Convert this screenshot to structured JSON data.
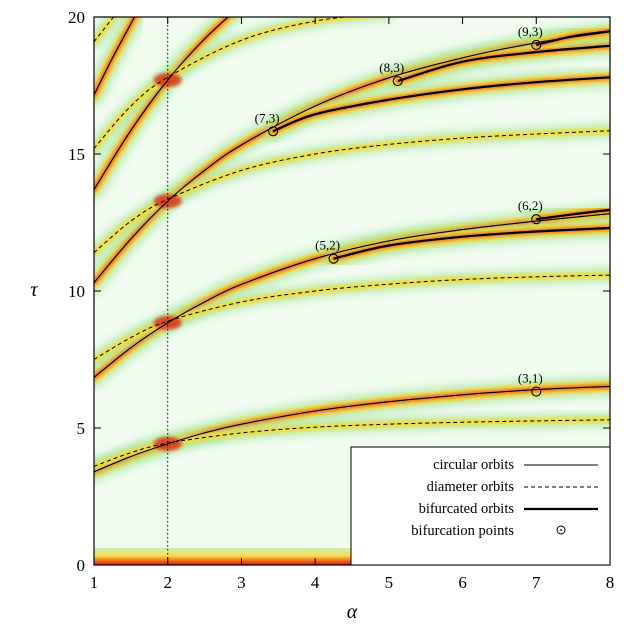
{
  "chart_data": {
    "type": "line",
    "title": "",
    "xlabel": "α",
    "ylabel": "τ",
    "xlim": [
      1,
      8
    ],
    "ylim": [
      0,
      20
    ],
    "xticks": [
      "1",
      "2",
      "3",
      "4",
      "5",
      "6",
      "7",
      "8"
    ],
    "yticks": [
      "0",
      "5",
      "10",
      "15",
      "20"
    ],
    "grid": false,
    "reference_line": {
      "orientation": "vertical",
      "x": 2,
      "style": "dotted"
    },
    "background": "heatmap (density of periodic orbit lengths), colours from white through green, yellow, orange to red",
    "legend": {
      "position": "bottom-right",
      "entries": [
        {
          "label": "circular orbits",
          "style": "thin-solid"
        },
        {
          "label": "diameter orbits",
          "style": "dashed"
        },
        {
          "label": "bifurcated orbits",
          "style": "thick-solid"
        },
        {
          "label": "bifurcation points",
          "style": "circle-marker"
        }
      ]
    },
    "series": [
      {
        "kind": "circular",
        "alpha": [
          1,
          1.5,
          2,
          2.5,
          3,
          4,
          5,
          6,
          7,
          8
        ],
        "tau": [
          3.4,
          3.96,
          4.42,
          4.82,
          5.14,
          5.62,
          5.96,
          6.21,
          6.4,
          6.52
        ]
      },
      {
        "kind": "circular",
        "alpha": [
          1,
          1.5,
          2,
          2.5,
          3,
          4,
          5,
          6,
          7,
          8
        ],
        "tau": [
          6.85,
          7.93,
          8.84,
          9.6,
          10.24,
          11.18,
          11.83,
          12.24,
          12.55,
          12.82
        ]
      },
      {
        "kind": "circular",
        "alpha": [
          1,
          1.5,
          2,
          2.5,
          3,
          4,
          5,
          6,
          7,
          8
        ],
        "tau": [
          10.3,
          11.9,
          13.28,
          14.4,
          15.33,
          16.75,
          17.78,
          18.51,
          19.06,
          19.46
        ]
      },
      {
        "kind": "circular",
        "alpha": [
          1,
          1.5,
          2,
          2.5,
          3
        ],
        "tau": [
          13.7,
          15.86,
          17.7,
          19.2,
          20.44
        ]
      },
      {
        "kind": "circular",
        "alpha": [
          1,
          1.25,
          1.55
        ],
        "tau": [
          17.15,
          18.5,
          20.0
        ]
      },
      {
        "kind": "diameter",
        "alpha": [
          1,
          1.5,
          2,
          3,
          4,
          5,
          6,
          7,
          8
        ],
        "tau": [
          3.6,
          4.1,
          4.45,
          4.82,
          5.03,
          5.14,
          5.21,
          5.26,
          5.3
        ]
      },
      {
        "kind": "diameter",
        "alpha": [
          1,
          1.5,
          2,
          3,
          4,
          5,
          6,
          7,
          8
        ],
        "tau": [
          7.5,
          8.3,
          8.9,
          9.6,
          10.0,
          10.25,
          10.42,
          10.52,
          10.58
        ]
      },
      {
        "kind": "diameter",
        "alpha": [
          1,
          1.5,
          2,
          3,
          4,
          5,
          6,
          7,
          8
        ],
        "tau": [
          11.4,
          12.55,
          13.35,
          14.4,
          15.0,
          15.35,
          15.58,
          15.73,
          15.85
        ]
      },
      {
        "kind": "diameter",
        "alpha": [
          1,
          1.5,
          2,
          3,
          4,
          5
        ],
        "tau": [
          15.2,
          16.75,
          17.8,
          19.15,
          19.85,
          20.15
        ]
      },
      {
        "kind": "diameter",
        "alpha": [
          1,
          1.5
        ],
        "tau": [
          19.1,
          20.8
        ]
      },
      {
        "kind": "bifurcated",
        "alpha": [
          4.25,
          5,
          6,
          7,
          8
        ],
        "tau": [
          11.18,
          11.66,
          11.98,
          12.17,
          12.3
        ]
      },
      {
        "kind": "bifurcated",
        "alpha": [
          3.43,
          4,
          5,
          6,
          7,
          8
        ],
        "tau": [
          15.83,
          16.45,
          16.98,
          17.36,
          17.62,
          17.8
        ]
      },
      {
        "kind": "bifurcated",
        "alpha": [
          5.12,
          6,
          7,
          8
        ],
        "tau": [
          17.66,
          18.37,
          18.72,
          18.95
        ]
      },
      {
        "kind": "bifurcated",
        "alpha": [
          7,
          7.5,
          8
        ],
        "tau": [
          18.98,
          19.3,
          19.48
        ]
      },
      {
        "kind": "bifurcated",
        "alpha": [
          7,
          7.5,
          8
        ],
        "tau": [
          12.62,
          12.8,
          12.96
        ]
      }
    ],
    "bifurcation_points": [
      {
        "label": "(3,1)",
        "alpha": 7.0,
        "tau": 6.33
      },
      {
        "label": "(5,2)",
        "alpha": 4.25,
        "tau": 11.18
      },
      {
        "label": "(6,2)",
        "alpha": 7.0,
        "tau": 12.62
      },
      {
        "label": "(7,3)",
        "alpha": 3.43,
        "tau": 15.83
      },
      {
        "label": "(8,3)",
        "alpha": 5.12,
        "tau": 17.66
      },
      {
        "label": "(9,3)",
        "alpha": 7.0,
        "tau": 18.98
      }
    ]
  }
}
